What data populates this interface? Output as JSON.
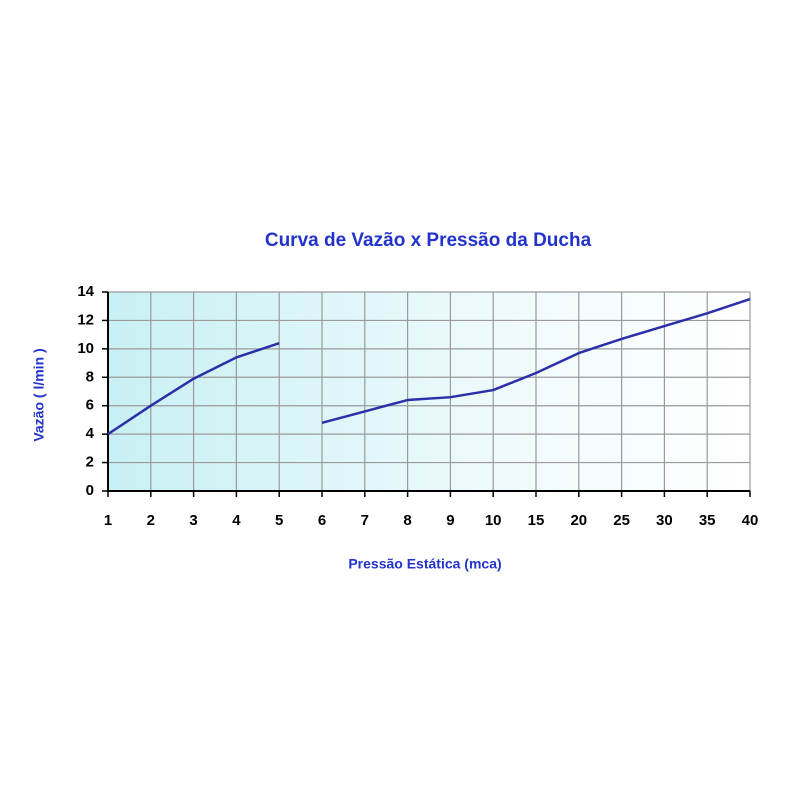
{
  "chart_data": {
    "type": "line",
    "title": "Curva de Vazão x Pressão da Ducha",
    "x_label": "Pressão Estática (mca)",
    "y_label": "Vazão ( l/min )",
    "categories": [
      1,
      2,
      3,
      4,
      5,
      6,
      7,
      8,
      9,
      10,
      15,
      20,
      25,
      30,
      35,
      40
    ],
    "series": [
      {
        "color": "#2b2fa8",
        "values": [
          4,
          6,
          7.9,
          9.4,
          10.4,
          null,
          null,
          null,
          null,
          null,
          null,
          null,
          null,
          null,
          null,
          null
        ]
      },
      {
        "color": "#2b2fa8",
        "values": [
          null,
          null,
          null,
          null,
          null,
          4.8,
          5.6,
          6.4,
          6.6,
          7.1,
          8.3,
          9.7,
          10.7,
          11.6,
          12.5,
          13.5
        ]
      }
    ],
    "ylim": [
      0,
      14
    ],
    "yticks": [
      0,
      2,
      4,
      6,
      8,
      10,
      12,
      14
    ],
    "grid": true
  }
}
